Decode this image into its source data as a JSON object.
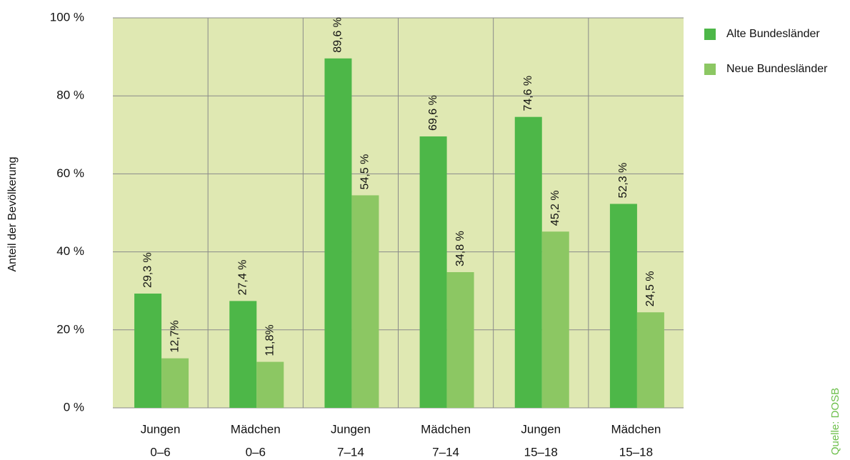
{
  "chart_data": {
    "type": "bar",
    "y_label": "Anteil der Bevölkerung",
    "source": "Quelle: DOSB",
    "categories": [
      [
        "Jungen",
        "0–6"
      ],
      [
        "Mädchen",
        "0–6"
      ],
      [
        "Jungen",
        "7–14"
      ],
      [
        "Mädchen",
        "7–14"
      ],
      [
        "Jungen",
        "15–18"
      ],
      [
        "Mädchen",
        "15–18"
      ]
    ],
    "series": [
      {
        "name": "Alte Bundesländer",
        "color": "#4db748",
        "values": [
          29.3,
          27.4,
          89.6,
          69.6,
          74.6,
          52.3
        ],
        "value_labels": [
          "29,3 %",
          "27,4 %",
          "89,6 %",
          "69,6 %",
          "74,6 %",
          "52,3 %"
        ]
      },
      {
        "name": "Neue Bundesländer",
        "color": "#8cc763",
        "values": [
          12.7,
          11.8,
          54.5,
          34.8,
          45.2,
          24.5
        ],
        "value_labels": [
          "12,7%",
          "11,8%",
          "54,5 %",
          "34,8 %",
          "45,2 %",
          "24,5 %"
        ]
      }
    ],
    "ylim": [
      0,
      100
    ],
    "yticks": [
      {
        "value": 0,
        "label": "0 %"
      },
      {
        "value": 20,
        "label": "20 %"
      },
      {
        "value": 40,
        "label": "40 %"
      },
      {
        "value": 60,
        "label": "60 %"
      },
      {
        "value": 80,
        "label": "80 %"
      },
      {
        "value": 100,
        "label": "100 %"
      }
    ],
    "grid": true,
    "legend": "right",
    "background": "#dfe8b2"
  }
}
